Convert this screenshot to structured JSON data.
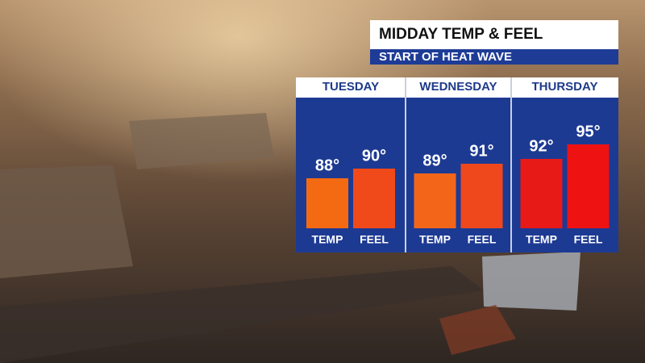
{
  "chart_data": {
    "type": "bar",
    "title": "MIDDAY TEMP & FEEL",
    "subtitle": "START OF HEAT WAVE",
    "categories": [
      "TUESDAY",
      "WEDNESDAY",
      "THURSDAY"
    ],
    "series": [
      {
        "name": "TEMP",
        "colors": [
          "#f46a12",
          "#f3661a",
          "#e81a18"
        ],
        "values": [
          88,
          89,
          92
        ],
        "value_labels": [
          "88°",
          "89°",
          "92°"
        ]
      },
      {
        "name": "FEEL",
        "colors": [
          "#f0491a",
          "#ef481c",
          "#ee1212"
        ],
        "values": [
          90,
          91,
          95
        ],
        "value_labels": [
          "90°",
          "91°",
          "95°"
        ]
      }
    ]
  }
}
